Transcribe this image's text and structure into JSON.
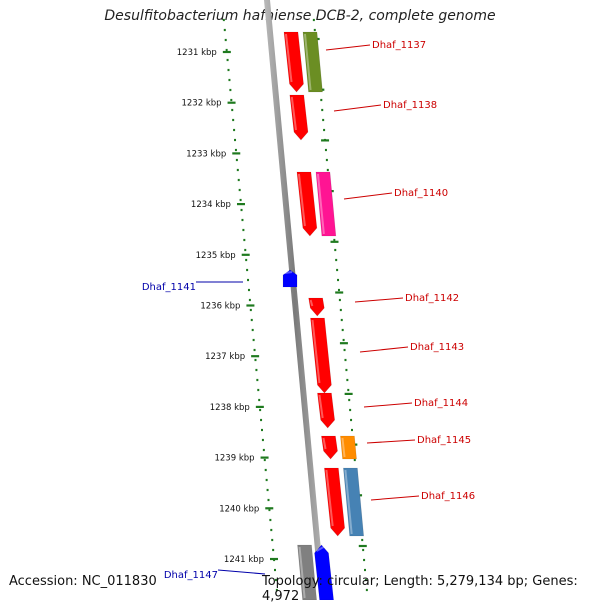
{
  "title": "Desulfitobacterium hafniense DCB-2, complete genome",
  "footer": {
    "accession": "Accession: NC_011830",
    "summary": "Topology: circular; Length: 5,279,134 bp; Genes: 4,972"
  },
  "colors": {
    "backbone": "#8c8c8c",
    "ticks": "#1f7a1f",
    "label_forward": "#cc0000",
    "label_reverse": "#0000aa"
  },
  "kbp_ticks": [
    "1231 kbp",
    "1232 kbp",
    "1233 kbp",
    "1234 kbp",
    "1235 kbp",
    "1236 kbp",
    "1237 kbp",
    "1238 kbp",
    "1239 kbp",
    "1240 kbp",
    "1241 kbp"
  ],
  "genes": [
    {
      "label": "Dhaf_1137",
      "strand": "forward",
      "colors": [
        "#ff0000",
        "#6b8e23"
      ]
    },
    {
      "label": "Dhaf_1138",
      "strand": "forward",
      "colors": [
        "#ff0000"
      ]
    },
    {
      "label": "Dhaf_1140",
      "strand": "forward",
      "colors": [
        "#ff0000",
        "#ff1493"
      ]
    },
    {
      "label": "Dhaf_1141",
      "strand": "reverse",
      "colors": [
        "#0000ff"
      ]
    },
    {
      "label": "Dhaf_1142",
      "strand": "forward",
      "colors": [
        "#ff0000"
      ]
    },
    {
      "label": "Dhaf_1143",
      "strand": "forward",
      "colors": [
        "#ff0000"
      ]
    },
    {
      "label": "Dhaf_1144",
      "strand": "forward",
      "colors": [
        "#ff0000"
      ]
    },
    {
      "label": "Dhaf_1145",
      "strand": "forward",
      "colors": [
        "#ff0000",
        "#ff8c00"
      ]
    },
    {
      "label": "Dhaf_1146",
      "strand": "forward",
      "colors": [
        "#ff0000",
        "#4682b4"
      ]
    },
    {
      "label": "Dhaf_1147",
      "strand": "reverse",
      "colors": [
        "#808080",
        "#0000ff"
      ]
    }
  ]
}
